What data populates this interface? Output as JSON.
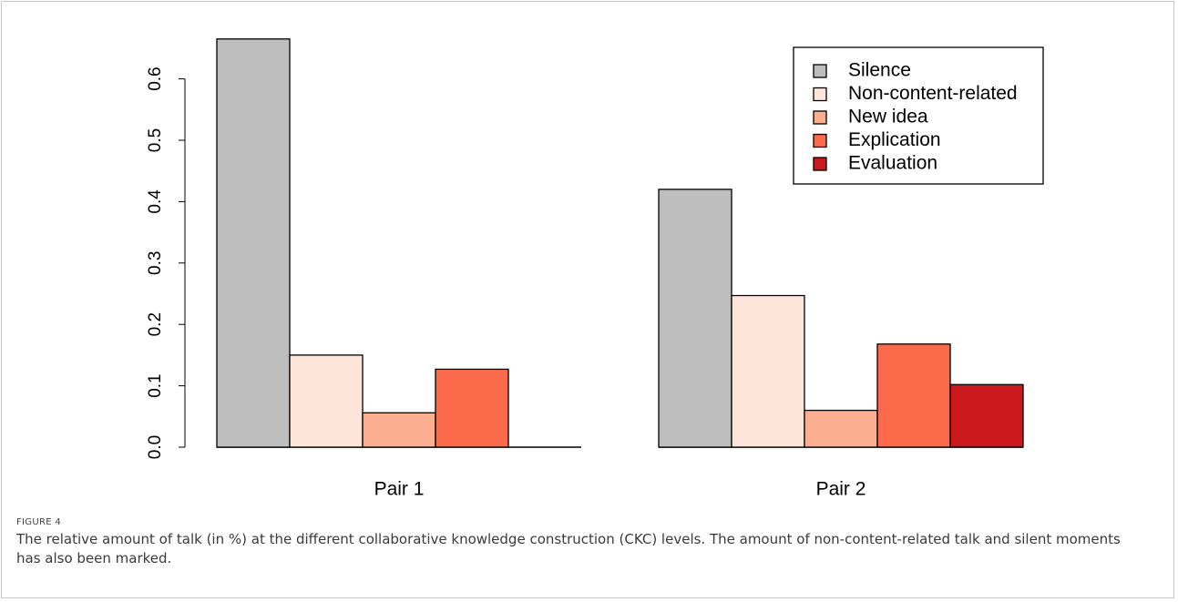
{
  "figure": {
    "label": "FIGURE 4",
    "caption": "The relative amount of talk (in %) at the different collaborative knowledge construction (CKC) levels. The amount of non-content-related talk and silent moments has also been marked."
  },
  "chart_data": {
    "type": "bar",
    "categories": [
      "Pair 1",
      "Pair 2"
    ],
    "series": [
      {
        "name": "Silence",
        "color": "#bebebe",
        "values": [
          0.665,
          0.42
        ]
      },
      {
        "name": "Non-content-related",
        "color": "#fee5d9",
        "values": [
          0.15,
          0.247
        ]
      },
      {
        "name": "New idea",
        "color": "#fcae91",
        "values": [
          0.056,
          0.06
        ]
      },
      {
        "name": "Explication",
        "color": "#fb6a4a",
        "values": [
          0.127,
          0.168
        ]
      },
      {
        "name": "Evaluation",
        "color": "#cb181d",
        "values": [
          0,
          0.102
        ]
      }
    ],
    "yticks": [
      "0.0",
      "0.1",
      "0.2",
      "0.3",
      "0.4",
      "0.5",
      "0.6"
    ],
    "ylim": [
      0,
      0.665
    ],
    "xlabel": "",
    "ylabel": "",
    "legend_position": "top-right",
    "grid": false
  }
}
